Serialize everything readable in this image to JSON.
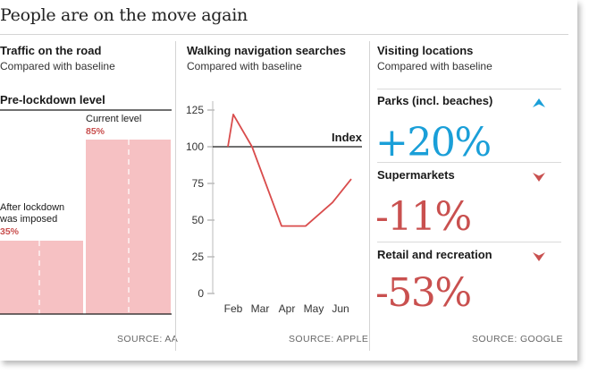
{
  "headline": "People are on the move again",
  "colors": {
    "accent_red": "#c9504f",
    "bar_fill": "#f6c1c3",
    "up_blue": "#1a9fd8",
    "text": "#1a1a1a"
  },
  "traffic": {
    "title": "Traffic on the road",
    "subtitle": "Compared with baseline",
    "reference_label": "Pre-lockdown level",
    "source": "SOURCE: AA"
  },
  "walking": {
    "title": "Walking navigation searches",
    "subtitle": "Compared with baseline",
    "index_label": "Index",
    "source": "SOURCE: APPLE"
  },
  "visiting": {
    "title": "Visiting locations",
    "subtitle": "Compared with baseline",
    "source": "SOURCE: GOOGLE",
    "items": [
      {
        "label": "Parks (incl. beaches)",
        "value": "+20%",
        "direction": "up",
        "icon": "arrow-up-icon",
        "color": "#1a9fd8"
      },
      {
        "label": "Supermarkets",
        "value": "-11%",
        "direction": "down",
        "icon": "arrow-down-icon",
        "color": "#c9504f"
      },
      {
        "label": "Retail and recreation",
        "value": "-53%",
        "direction": "down",
        "icon": "arrow-down-icon",
        "color": "#c9504f"
      }
    ]
  },
  "chart_data": [
    {
      "type": "bar",
      "title": "Traffic on the road",
      "categories": [
        "After lockdown was imposed",
        "Current level"
      ],
      "values": [
        35,
        85
      ],
      "value_labels": [
        "35%",
        "85%"
      ],
      "reference": {
        "label": "Pre-lockdown level",
        "value": 100
      },
      "ylim": [
        0,
        100
      ]
    },
    {
      "type": "line",
      "title": "Walking navigation searches",
      "x_ticks": [
        "Feb",
        "Mar",
        "Apr",
        "May",
        "Jun"
      ],
      "y_ticks": [
        0,
        25,
        50,
        75,
        100,
        125
      ],
      "ylim": [
        0,
        125
      ],
      "reference": {
        "label": "Index",
        "value": 100
      },
      "x": [
        0.1,
        0.3,
        1.0,
        2.1,
        3.0,
        4.0,
        4.7
      ],
      "values": [
        100,
        122,
        100,
        46,
        46,
        62,
        78
      ]
    }
  ]
}
